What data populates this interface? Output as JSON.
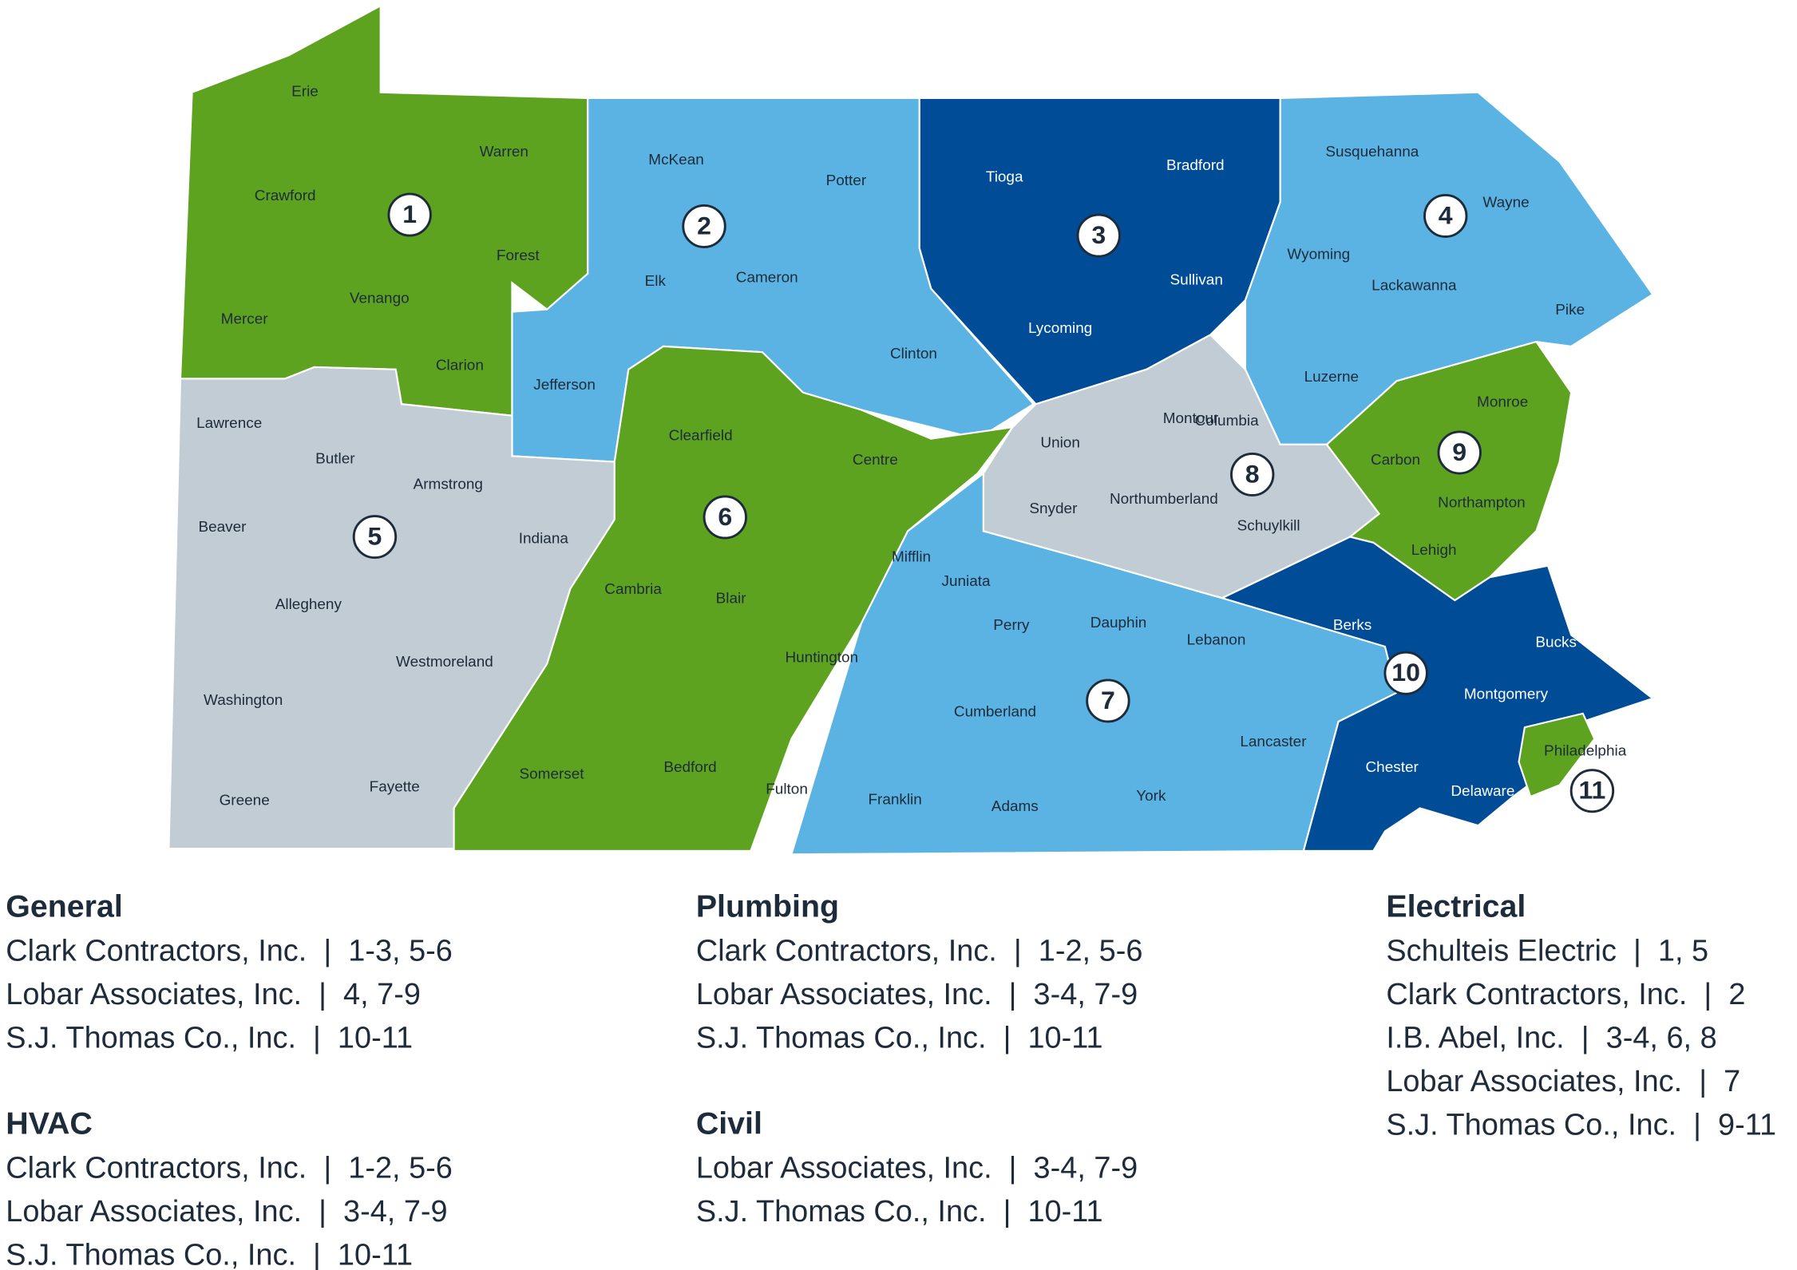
{
  "map": {
    "regions": [
      {
        "label": "1",
        "color": "#5ea31f",
        "counties": [
          "Erie",
          "Warren",
          "Crawford",
          "Forest",
          "Venango",
          "Mercer",
          "Clarion"
        ]
      },
      {
        "label": "2",
        "color": "#5ab3e2",
        "counties": [
          "McKean",
          "Potter",
          "Elk",
          "Cameron",
          "Jefferson",
          "Clinton"
        ]
      },
      {
        "label": "3",
        "color": "#004c97",
        "counties": [
          "Tioga",
          "Bradford",
          "Sullivan",
          "Lycoming"
        ]
      },
      {
        "label": "4",
        "color": "#5ab3e2",
        "counties": [
          "Susquehanna",
          "Wayne",
          "Wyoming",
          "Lackawanna",
          "Pike",
          "Luzerne"
        ]
      },
      {
        "label": "5",
        "color": "#c2ccd4",
        "counties": [
          "Lawrence",
          "Butler",
          "Armstrong",
          "Beaver",
          "Indiana",
          "Allegheny",
          "Westmoreland",
          "Washington",
          "Greene",
          "Fayette"
        ]
      },
      {
        "label": "6",
        "color": "#5ea31f",
        "counties": [
          "Clearfield",
          "Centre",
          "Cambria",
          "Blair",
          "Huntington",
          "Somerset",
          "Bedford",
          "Fulton"
        ]
      },
      {
        "label": "7",
        "color": "#5ab3e2",
        "counties": [
          "Mifflin",
          "Juniata",
          "Perry",
          "Dauphin",
          "Lebanon",
          "Cumberland",
          "Lancaster",
          "Franklin",
          "Adams",
          "York"
        ]
      },
      {
        "label": "8",
        "color": "#c2ccd4",
        "counties": [
          "Union",
          "Montour",
          "Columbia",
          "Snyder",
          "Northumberland",
          "Schuylkill"
        ]
      },
      {
        "label": "9",
        "color": "#5ea31f",
        "counties": [
          "Monroe",
          "Carbon",
          "Northampton",
          "Lehigh"
        ]
      },
      {
        "label": "10",
        "color": "#004c97",
        "counties": [
          "Berks",
          "Bucks",
          "Montgomery",
          "Chester",
          "Delaware"
        ]
      },
      {
        "label": "11",
        "color": "#5ea31f",
        "counties": [
          "Philadelphia"
        ]
      }
    ]
  },
  "legend": {
    "columns": [
      [
        {
          "title": "General",
          "lines": [
            "Clark Contractors, Inc.  |  1-3, 5-6",
            "Lobar Associates, Inc.  |  4, 7-9",
            "S.J. Thomas Co., Inc.  |  10-11"
          ]
        },
        {
          "title": "HVAC",
          "lines": [
            "Clark Contractors, Inc.  |  1-2, 5-6",
            "Lobar Associates, Inc.  |  3-4, 7-9",
            "S.J. Thomas Co., Inc.  |  10-11"
          ]
        }
      ],
      [
        {
          "title": "Plumbing",
          "lines": [
            "Clark Contractors, Inc.  |  1-2, 5-6",
            "Lobar Associates, Inc.  |  3-4, 7-9",
            "S.J. Thomas Co., Inc.  |  10-11"
          ]
        },
        {
          "title": "Civil",
          "lines": [
            "Lobar Associates, Inc.  |  3-4, 7-9",
            "S.J. Thomas Co., Inc.  |  10-11"
          ]
        }
      ],
      [
        {
          "title": "Electrical",
          "lines": [
            "Schulteis Electric  |  1, 5",
            "Clark Contractors, Inc.  |  2",
            "I.B. Abel, Inc.  |  3-4, 6, 8",
            "Lobar Associates, Inc.  |  7",
            "S.J. Thomas Co., Inc.  |  9-11"
          ]
        }
      ]
    ]
  }
}
